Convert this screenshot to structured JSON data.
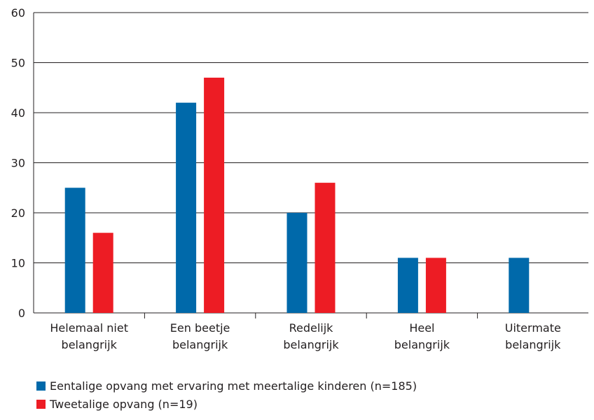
{
  "chart_data": {
    "type": "bar",
    "categories": [
      [
        "Helemaal niet",
        "belangrijk"
      ],
      [
        "Een beetje",
        "belangrijk"
      ],
      [
        "Redelijk",
        "belangrijk"
      ],
      [
        "Heel",
        "belangrijk"
      ],
      [
        "Uitermate",
        "belangrijk"
      ]
    ],
    "series": [
      {
        "name": "Eentalige opvang met ervaring met meertalige kinderen (n=185)",
        "color": "#0069aa",
        "values": [
          25,
          42,
          20,
          11,
          11
        ]
      },
      {
        "name": "Tweetalige opvang (n=19)",
        "color": "#ed1c24",
        "values": [
          16,
          47,
          26,
          11,
          0
        ]
      }
    ],
    "ylim": [
      0,
      60
    ],
    "yticks": [
      0,
      10,
      20,
      30,
      40,
      50,
      60
    ],
    "grid": true,
    "legend": "bottom-left"
  }
}
